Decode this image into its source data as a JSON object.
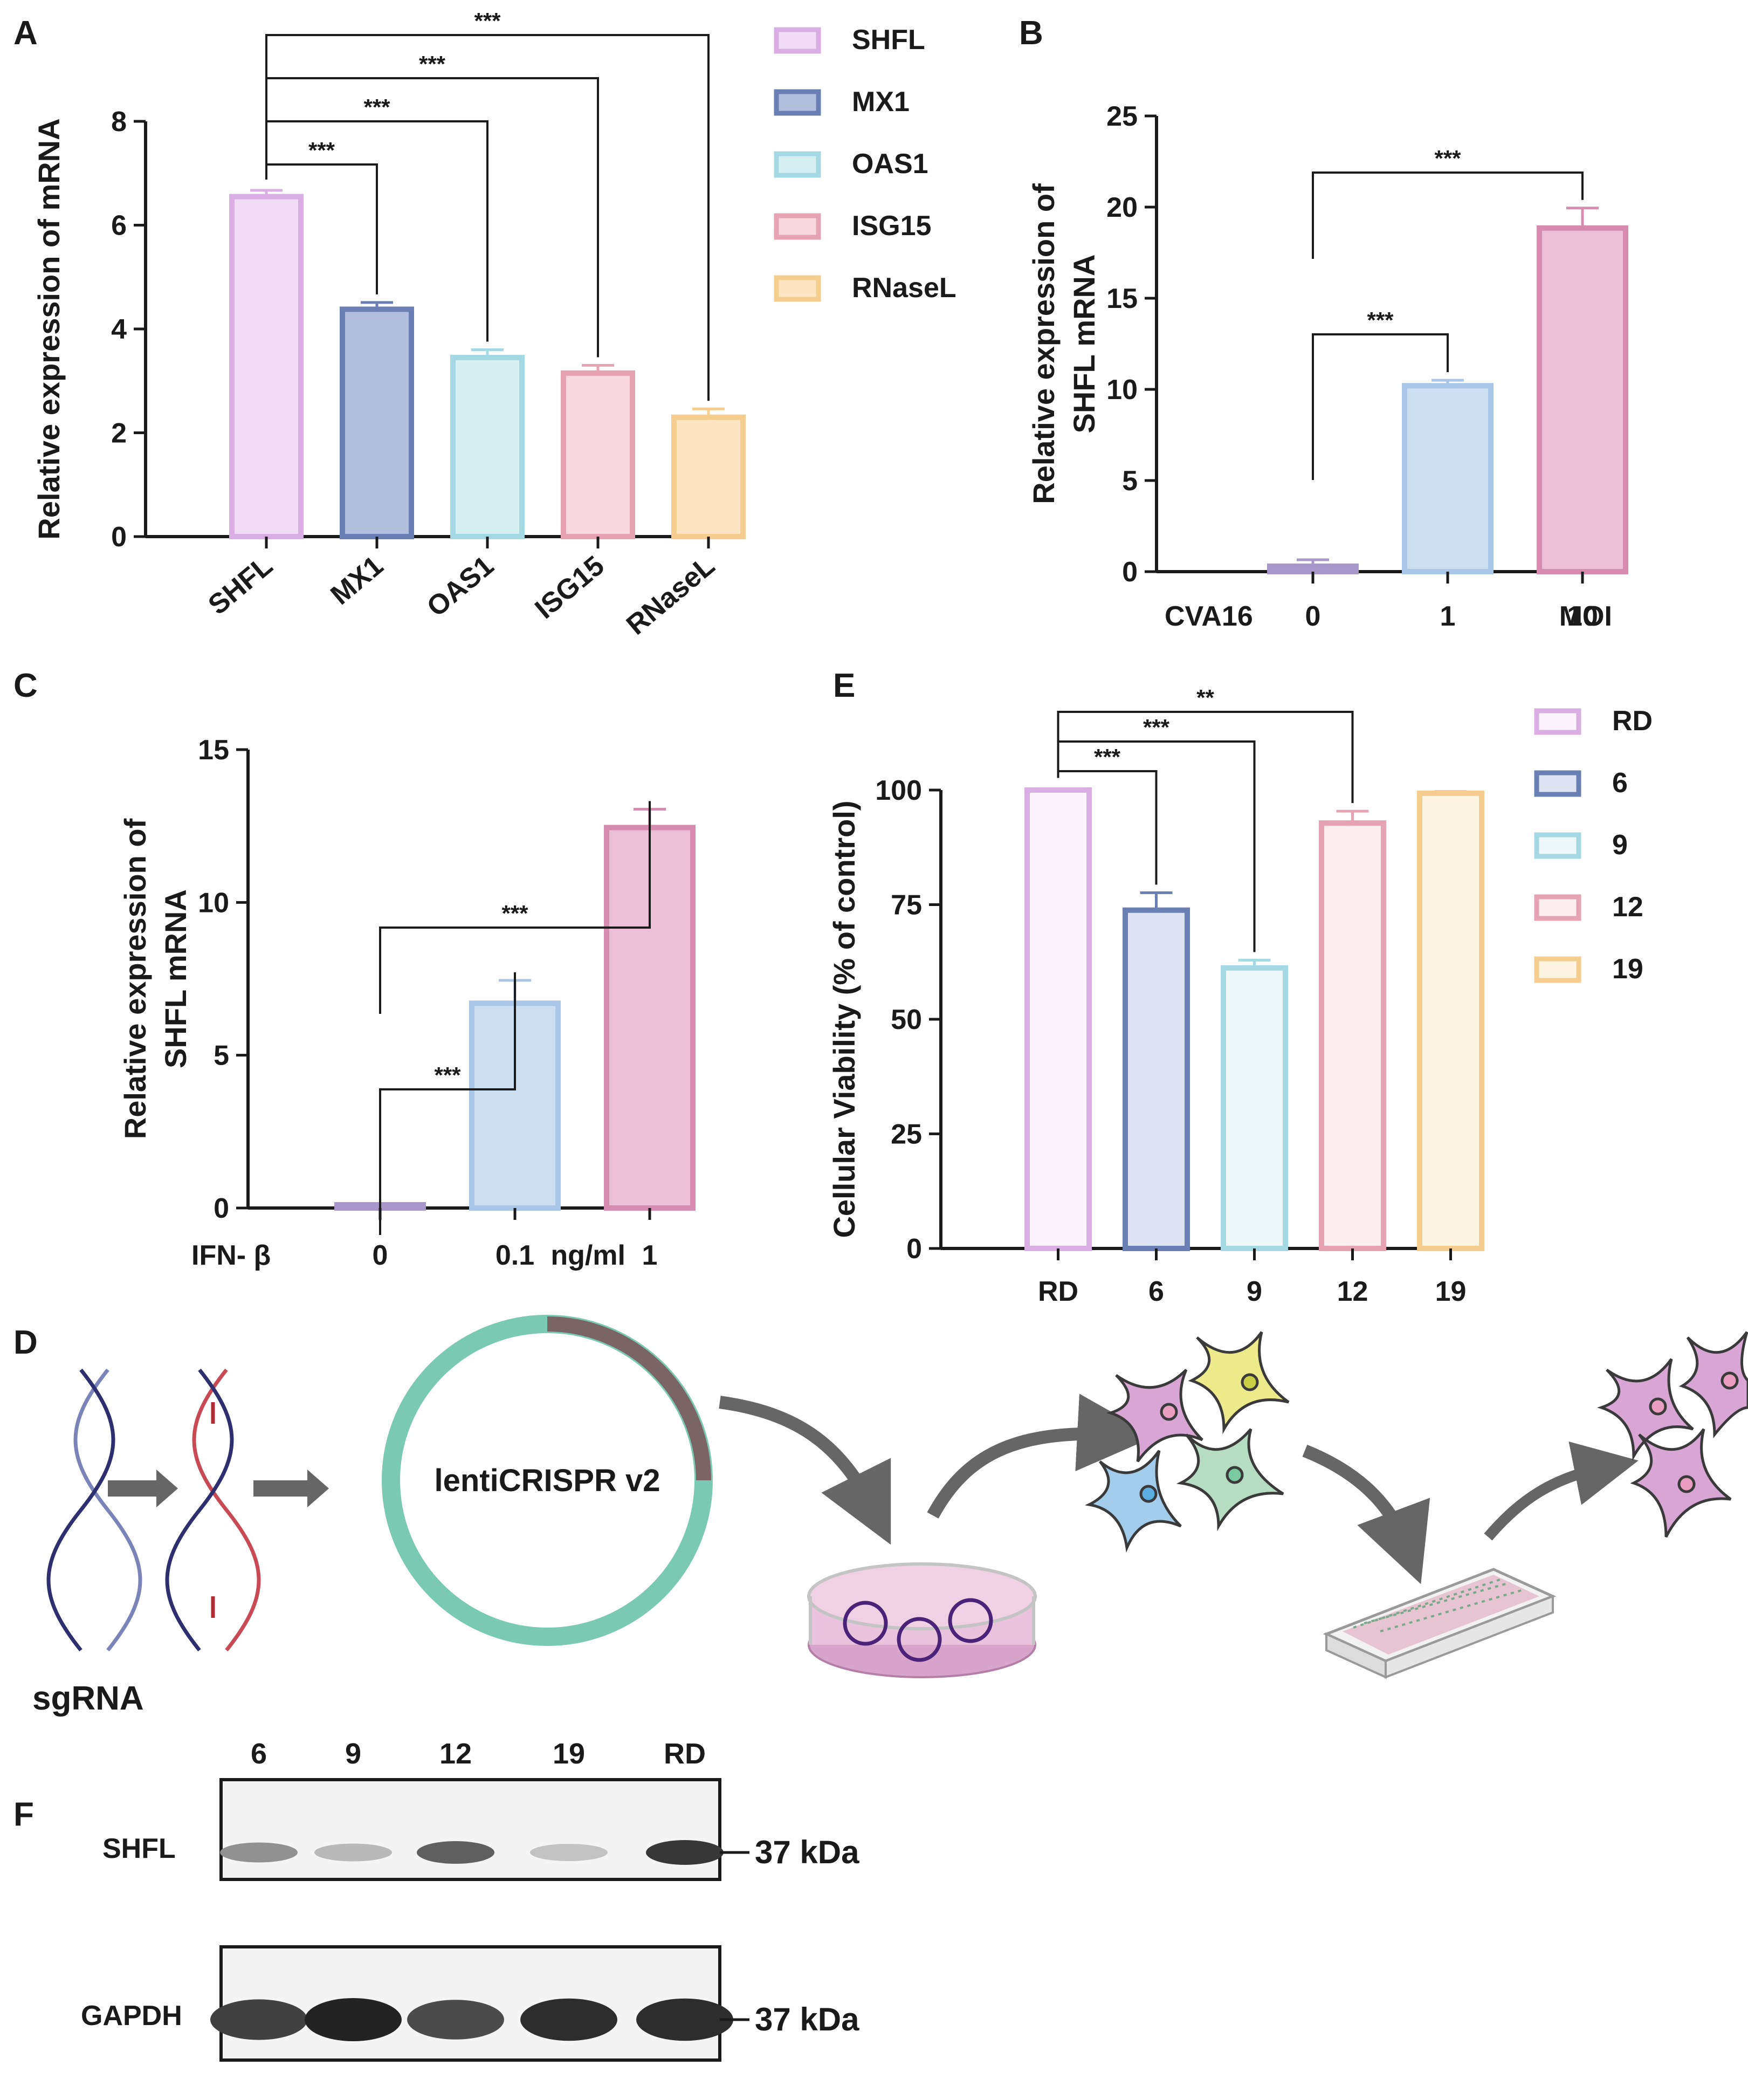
{
  "colors": {
    "pink": "#d9aee3",
    "pink_fill": "#f1dcf5",
    "navy": "#6a80b4",
    "navy_fill": "#b2bfdc",
    "cyan": "#a4d9e3",
    "cyan_fill": "#d6eff3",
    "rose": "#e6a3b4",
    "rose_fill": "#f8d7df",
    "orange": "#f5cd8e",
    "orange_fill": "#fde5c3",
    "lblue": "#a9c6e6",
    "lblue_fill": "#ccdff0",
    "magenta": "#d68cae",
    "magenta_fill": "#ebc0d6",
    "purple": "#a898c9",
    "purple_fill": "#c4b8dc",
    "teal": "#7ac9b2",
    "grey": "#7a6465",
    "arrow": "#666666"
  },
  "panel_labels": {
    "A": "A",
    "B": "B",
    "C": "C",
    "D": "D",
    "E": "E",
    "F": "F"
  },
  "chart_data": [
    {
      "panel": "A",
      "type": "bar",
      "categories": [
        "SHFL",
        "MX1",
        "OAS1",
        "ISG15",
        "RNaseL"
      ],
      "values": [
        6.55,
        4.38,
        3.45,
        3.15,
        2.3
      ],
      "errors": [
        0.12,
        0.13,
        0.15,
        0.15,
        0.16
      ],
      "ylabel": "Relative expression of mRNA",
      "ylim": [
        0,
        8
      ],
      "yticks": [
        "0",
        "2",
        "4",
        "6",
        "8"
      ],
      "legend": [
        "SHFL",
        "MX1",
        "OAS1",
        "ISG15",
        "RNaseL"
      ],
      "significance": [
        {
          "from": 0,
          "to": 1,
          "label": "***"
        },
        {
          "from": 0,
          "to": 2,
          "label": "***"
        },
        {
          "from": 0,
          "to": 3,
          "label": "***"
        },
        {
          "from": 0,
          "to": 4,
          "label": "***"
        }
      ]
    },
    {
      "panel": "B",
      "type": "bar",
      "categories": [
        "0",
        "1",
        "10"
      ],
      "values": [
        0.3,
        10.2,
        18.85
      ],
      "errors": [
        0.35,
        0.3,
        1.1
      ],
      "ylabel_line1": "Relative expression of",
      "ylabel_line2": "SHFL mRNA",
      "ylim": [
        0,
        25
      ],
      "yticks": [
        "0",
        "5",
        "10",
        "15",
        "20",
        "25"
      ],
      "xprefix": "CVA16",
      "xunit": "MOI",
      "significance": [
        {
          "from": 0,
          "to": 1,
          "label": "***"
        },
        {
          "from": 0,
          "to": 2,
          "label": "***"
        }
      ]
    },
    {
      "panel": "C",
      "type": "bar",
      "categories": [
        "0",
        "0.1",
        "1"
      ],
      "values": [
        0.05,
        6.7,
        12.45
      ],
      "errors": [
        0.05,
        0.75,
        0.6
      ],
      "ylabel_line1": "Relative expression of",
      "ylabel_line2": "SHFL mRNA",
      "ylim": [
        0,
        15
      ],
      "yticks": [
        "0",
        "5",
        "10",
        "15"
      ],
      "xprefix": "IFN- β",
      "xunit": "ng/ml",
      "significance": [
        {
          "from": 0,
          "to": 1,
          "label": "***"
        },
        {
          "from": 0,
          "to": 2,
          "label": "***"
        }
      ]
    },
    {
      "panel": "E",
      "type": "bar",
      "categories": [
        "RD",
        "6",
        "9",
        "12",
        "19"
      ],
      "values": [
        100,
        73.8,
        61.2,
        92.8,
        99.3
      ],
      "errors": [
        0.3,
        3.8,
        1.7,
        2.6,
        0.4
      ],
      "ylabel": "Cellular Viability (% of control)",
      "ylim": [
        0,
        100
      ],
      "yticks": [
        "0",
        "25",
        "50",
        "75",
        "100"
      ],
      "legend": [
        "RD",
        "6",
        "9",
        "12",
        "19"
      ],
      "significance": [
        {
          "from": 0,
          "to": 1,
          "label": "***"
        },
        {
          "from": 0,
          "to": 2,
          "label": "***"
        },
        {
          "from": 0,
          "to": 3,
          "label": "**"
        }
      ]
    }
  ],
  "diagram": {
    "plasmid_label": "lentiCRISPR v2",
    "sgrna_label": "sgRNA"
  },
  "western": {
    "lanes": [
      "6",
      "9",
      "12",
      "19",
      "RD"
    ],
    "rows": [
      {
        "protein": "SHFL",
        "size": "37 kDa",
        "intensity": [
          0.45,
          0.25,
          0.7,
          0.2,
          0.9
        ]
      },
      {
        "protein": "GAPDH",
        "size": "37 kDa",
        "intensity": [
          0.85,
          1.0,
          0.8,
          0.95,
          0.95
        ]
      }
    ]
  }
}
